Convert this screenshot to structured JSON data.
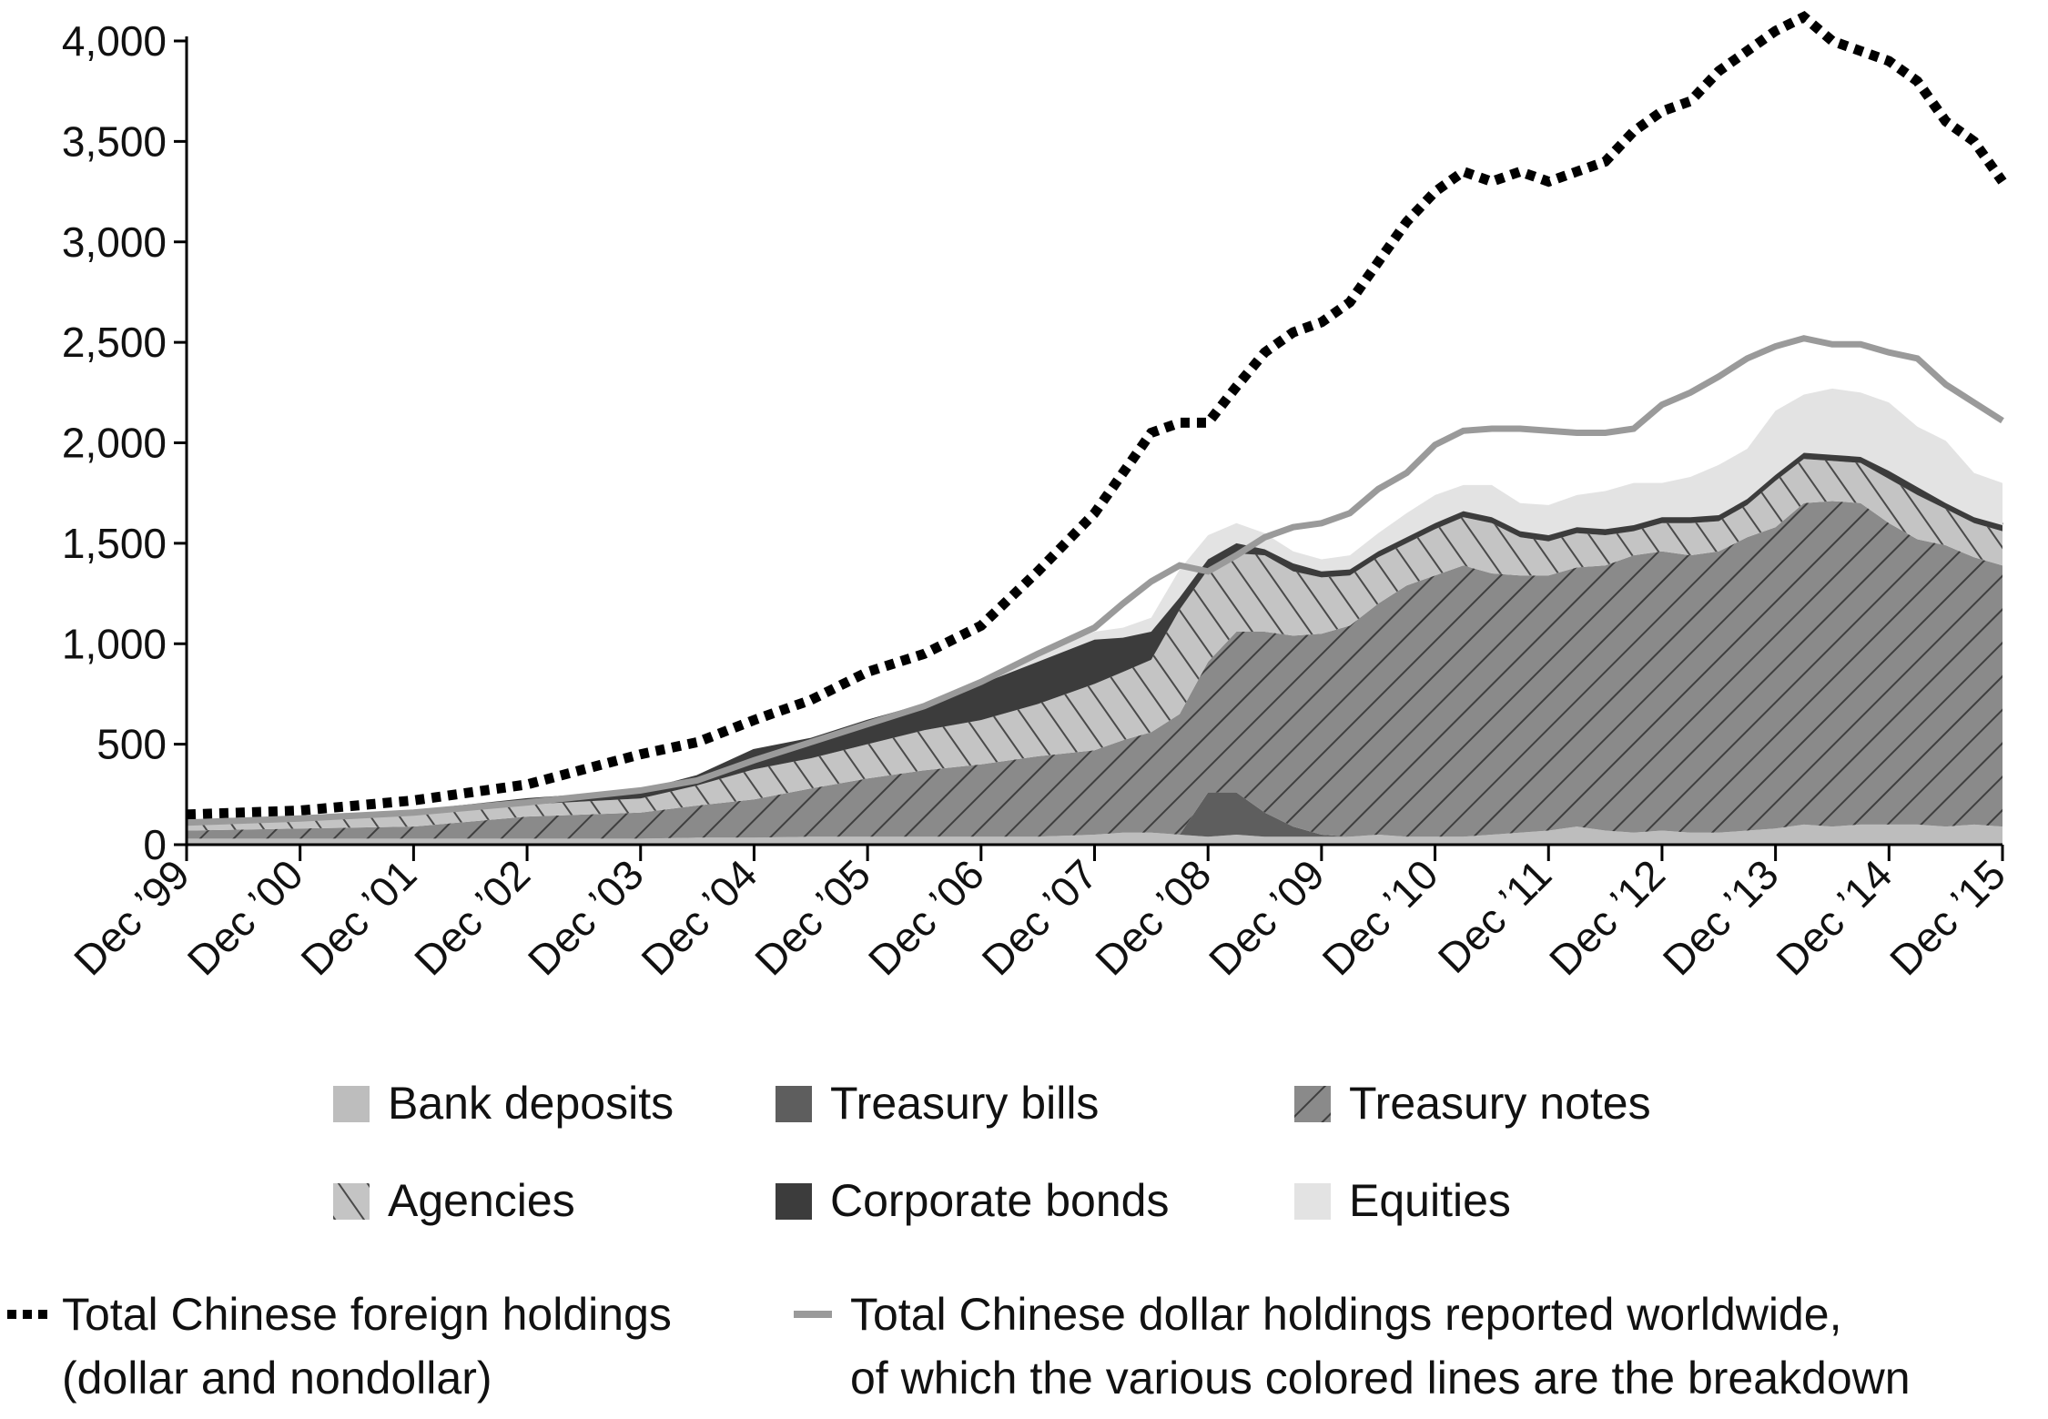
{
  "chart_data": {
    "type": "area",
    "title": "",
    "xlabel": "",
    "ylabel": "",
    "ylim": [
      0,
      4000
    ],
    "yticks": [
      0,
      500,
      1000,
      1500,
      2000,
      2500,
      3000,
      3500,
      4000
    ],
    "y_tick_labels": [
      "0",
      "500",
      "1,000",
      "1,500",
      "2,000",
      "2,500",
      "3,000",
      "3,500",
      "4,000"
    ],
    "x_tick_labels": [
      "Dec ’99",
      "Dec ’00",
      "Dec ’01",
      "Dec ’02",
      "Dec ’03",
      "Dec ’04",
      "Dec ’05",
      "Dec ’06",
      "Dec ’07",
      "Dec ’08",
      "Dec ’09",
      "Dec ’10",
      "Dec ’11",
      "Dec ’12",
      "Dec ’13",
      "Dec ’14",
      "Dec ’15"
    ],
    "x_tick_years": [
      1999,
      2000,
      2001,
      2002,
      2003,
      2004,
      2005,
      2006,
      2007,
      2008,
      2009,
      2010,
      2011,
      2012,
      2013,
      2014,
      2015
    ],
    "x": [
      1999,
      2000,
      2001,
      2002,
      2003,
      2003.5,
      2004,
      2004.5,
      2005,
      2005.5,
      2006,
      2006.5,
      2007,
      2007.25,
      2007.5,
      2007.75,
      2008,
      2008.25,
      2008.5,
      2008.75,
      2009,
      2009.25,
      2009.5,
      2009.75,
      2010,
      2010.25,
      2010.5,
      2010.75,
      2011,
      2011.25,
      2011.5,
      2011.75,
      2012,
      2012.25,
      2012.5,
      2012.75,
      2013,
      2013.25,
      2013.5,
      2013.75,
      2014,
      2014.25,
      2014.5,
      2014.75,
      2015
    ],
    "stack_order": [
      "Bank deposits",
      "Treasury bills",
      "Treasury notes",
      "Agencies",
      "Corporate bonds",
      "Equities"
    ],
    "series": [
      {
        "name": "Bank deposits",
        "kind": "area",
        "color": "#bdbdbd",
        "pattern": "solid",
        "values": [
          30,
          30,
          30,
          30,
          30,
          35,
          35,
          40,
          40,
          40,
          40,
          40,
          50,
          60,
          60,
          50,
          40,
          50,
          40,
          40,
          40,
          40,
          50,
          40,
          40,
          40,
          50,
          60,
          70,
          90,
          70,
          60,
          70,
          60,
          60,
          70,
          80,
          100,
          90,
          100,
          100,
          100,
          90,
          100,
          90
        ]
      },
      {
        "name": "Treasury bills",
        "kind": "area",
        "color": "#5e5e5e",
        "pattern": "solid",
        "values": [
          0,
          0,
          0,
          0,
          0,
          0,
          0,
          0,
          0,
          0,
          0,
          0,
          0,
          0,
          0,
          0,
          220,
          210,
          120,
          50,
          10,
          0,
          0,
          0,
          0,
          0,
          0,
          0,
          0,
          0,
          0,
          0,
          0,
          0,
          0,
          0,
          0,
          0,
          0,
          0,
          0,
          0,
          0,
          0,
          0
        ]
      },
      {
        "name": "Treasury notes",
        "kind": "area",
        "color": "#8a8a8a",
        "pattern": "diag-right",
        "values": [
          40,
          50,
          60,
          110,
          130,
          160,
          190,
          240,
          290,
          330,
          360,
          400,
          420,
          460,
          500,
          600,
          650,
          800,
          900,
          950,
          1000,
          1050,
          1150,
          1250,
          1300,
          1350,
          1300,
          1280,
          1270,
          1290,
          1320,
          1380,
          1390,
          1380,
          1400,
          1460,
          1500,
          1600,
          1620,
          1600,
          1500,
          1420,
          1400,
          1330,
          1300
        ]
      },
      {
        "name": "Agencies",
        "kind": "area",
        "color": "#c4c4c4",
        "pattern": "diag-left",
        "values": [
          30,
          40,
          60,
          60,
          70,
          100,
          150,
          150,
          170,
          200,
          220,
          260,
          330,
          340,
          360,
          520,
          460,
          390,
          380,
          320,
          280,
          250,
          230,
          210,
          230,
          240,
          250,
          190,
          170,
          170,
          150,
          120,
          140,
          160,
          150,
          160,
          230,
          220,
          200,
          200,
          220,
          220,
          180,
          170,
          170
        ]
      },
      {
        "name": "Corporate bonds",
        "kind": "area",
        "color": "#3c3c3c",
        "pattern": "solid",
        "values": [
          10,
          10,
          10,
          20,
          30,
          40,
          90,
          90,
          110,
          120,
          180,
          210,
          220,
          170,
          140,
          60,
          50,
          50,
          30,
          40,
          30,
          30,
          30,
          30,
          30,
          30,
          30,
          30,
          30,
          30,
          30,
          30,
          30,
          30,
          30,
          30,
          30,
          30,
          30,
          30,
          40,
          40,
          30,
          30,
          30
        ]
      },
      {
        "name": "Equities",
        "kind": "area",
        "color": "#e3e3e3",
        "pattern": "solid",
        "values": [
          0,
          0,
          0,
          0,
          0,
          0,
          0,
          0,
          0,
          0,
          0,
          30,
          40,
          50,
          70,
          140,
          120,
          100,
          80,
          60,
          60,
          70,
          90,
          120,
          140,
          130,
          160,
          140,
          150,
          160,
          190,
          210,
          170,
          200,
          250,
          250,
          320,
          290,
          330,
          320,
          340,
          300,
          310,
          220,
          210
        ]
      },
      {
        "name": "Total Chinese foreign holdings (dollar and nondollar)",
        "kind": "line",
        "style": "dotted",
        "color": "#000000",
        "values": [
          150,
          170,
          220,
          300,
          450,
          510,
          620,
          720,
          860,
          950,
          1090,
          1360,
          1650,
          1850,
          2050,
          2100,
          2100,
          2280,
          2450,
          2550,
          2600,
          2700,
          2900,
          3100,
          3250,
          3350,
          3300,
          3350,
          3300,
          3350,
          3400,
          3550,
          3650,
          3700,
          3850,
          3950,
          4050,
          4120,
          4000,
          3950,
          3900,
          3800,
          3600,
          3500,
          3300
        ]
      },
      {
        "name": "Total Chinese dollar holdings reported worldwide, of which the various colored lines are the breakdown",
        "kind": "line",
        "style": "solid",
        "color": "#9a9a9a",
        "values": [
          110,
          130,
          160,
          210,
          270,
          320,
          420,
          510,
          600,
          690,
          810,
          950,
          1080,
          1200,
          1310,
          1390,
          1360,
          1440,
          1530,
          1580,
          1600,
          1650,
          1770,
          1850,
          1990,
          2060,
          2070,
          2070,
          2060,
          2050,
          2050,
          2070,
          2190,
          2250,
          2330,
          2420,
          2480,
          2520,
          2490,
          2490,
          2450,
          2420,
          2290,
          2200,
          2110
        ]
      }
    ]
  },
  "legend": {
    "rows": [
      [
        {
          "label": "Bank deposits",
          "color": "#bdbdbd",
          "pattern": "solid"
        },
        {
          "label": "Treasury bills",
          "color": "#5e5e5e",
          "pattern": "solid"
        },
        {
          "label": "Treasury notes",
          "color": "#8a8a8a",
          "pattern": "diag-right"
        }
      ],
      [
        {
          "label": "Agencies",
          "color": "#c4c4c4",
          "pattern": "diag-left"
        },
        {
          "label": "Corporate bonds",
          "color": "#3c3c3c",
          "pattern": "solid"
        },
        {
          "label": "Equities",
          "color": "#e3e3e3",
          "pattern": "solid"
        }
      ]
    ],
    "lines": [
      {
        "label_line1": "Total Chinese foreign holdings",
        "label_line2": "(dollar and nondollar)",
        "style": "dotted",
        "color": "#000000"
      },
      {
        "label_line1": "Total Chinese dollar holdings reported worldwide,",
        "label_line2": "of which the various colored lines are the breakdown",
        "style": "solid",
        "color": "#9a9a9a"
      }
    ]
  }
}
